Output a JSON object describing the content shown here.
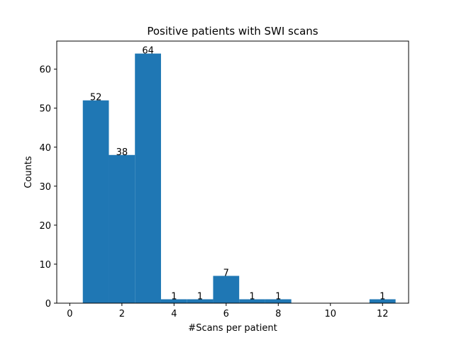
{
  "chart_data": {
    "type": "bar",
    "title": "Positive patients with SWI scans",
    "xlabel": "#Scans per patient",
    "ylabel": "Counts",
    "xlim": [
      -0.5,
      13.0
    ],
    "ylim": [
      0,
      67.2
    ],
    "xticks": [
      0,
      2,
      4,
      6,
      8,
      10,
      12
    ],
    "yticks": [
      0,
      10,
      20,
      30,
      40,
      50,
      60
    ],
    "bar_width": 1,
    "bar_color": "#1f77b4",
    "x": [
      1,
      2,
      3,
      4,
      5,
      6,
      7,
      8,
      12
    ],
    "values": [
      52,
      38,
      64,
      1,
      1,
      7,
      1,
      1,
      1
    ],
    "value_labels": [
      "52",
      "38",
      "64",
      "1",
      "1",
      "7",
      "1",
      "1",
      "1"
    ],
    "grid": false,
    "legend": "none"
  }
}
